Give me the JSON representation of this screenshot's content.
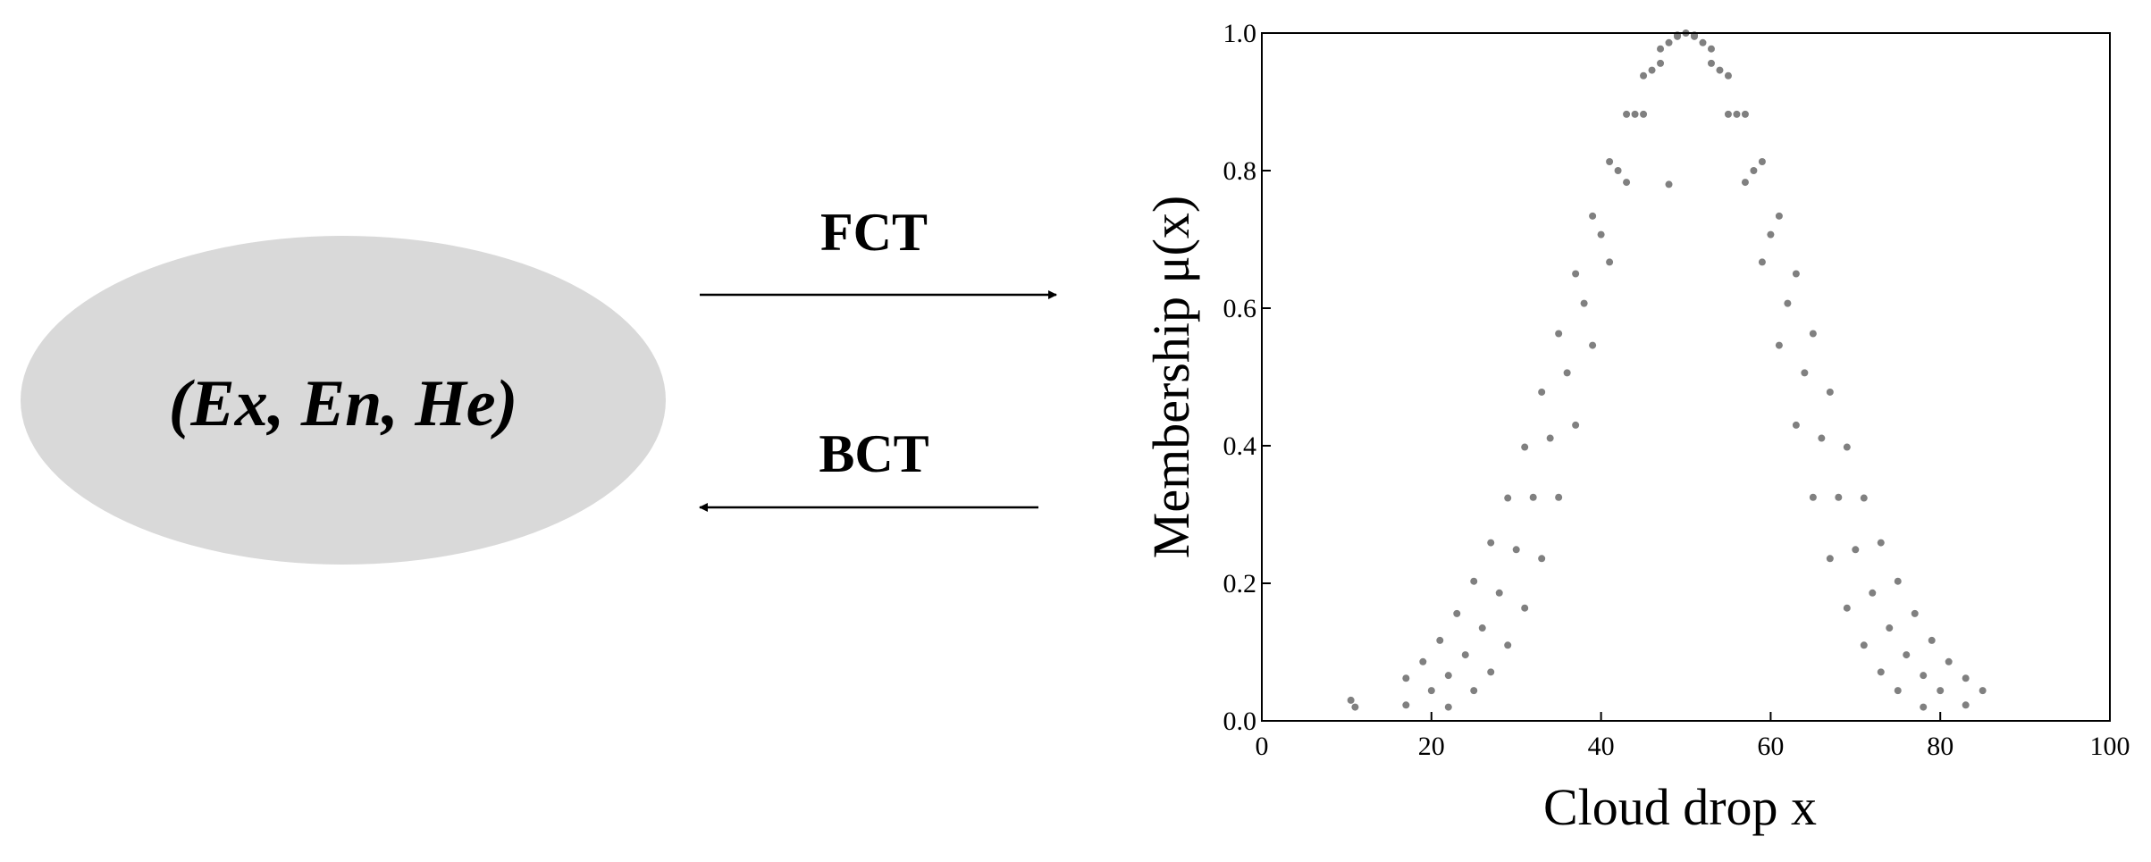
{
  "node": {
    "label": "(Ex, En, He)"
  },
  "arrows": {
    "forward": "FCT",
    "backward": "BCT"
  },
  "chart_data": {
    "type": "scatter",
    "xlabel": "Cloud drop x",
    "ylabel": "Membership μ(x)",
    "color": "#808080",
    "xlim": [
      0,
      100
    ],
    "ylim": [
      0,
      1
    ],
    "xticks": [
      0,
      20,
      40,
      60,
      80,
      100
    ],
    "yticks": [
      {
        "value": 0,
        "label": "0.0"
      },
      0.2,
      0.4,
      0.6,
      0.8,
      {
        "value": 1,
        "label": "1.0"
      }
    ],
    "x": [
      49,
      47,
      45,
      43,
      41,
      39,
      37,
      35,
      33,
      31,
      29,
      27,
      25,
      22,
      51,
      53,
      55,
      57,
      59,
      61,
      63,
      65,
      67,
      69,
      71,
      73,
      75,
      77,
      79,
      81,
      83,
      85,
      48,
      46,
      44,
      42,
      40,
      38,
      36,
      34,
      32,
      30,
      28,
      26,
      24,
      22,
      20,
      17,
      52,
      54,
      56,
      58,
      60,
      62,
      64,
      66,
      68,
      70,
      72,
      74,
      76,
      78,
      80,
      83,
      49,
      47,
      45,
      43,
      41,
      39,
      37,
      35,
      33,
      31,
      29,
      27,
      25,
      23,
      21,
      19,
      17,
      51,
      53,
      55,
      57,
      59,
      61,
      63,
      65,
      67,
      69,
      71,
      73,
      75,
      78,
      10.5,
      11,
      50,
      48
    ],
    "values": [
      0.995,
      0.956,
      0.882,
      0.783,
      0.667,
      0.546,
      0.43,
      0.325,
      0.236,
      0.164,
      0.11,
      0.071,
      0.044,
      0.02,
      0.997,
      0.977,
      0.938,
      0.882,
      0.813,
      0.734,
      0.65,
      0.563,
      0.478,
      0.398,
      0.324,
      0.259,
      0.203,
      0.156,
      0.117,
      0.086,
      0.062,
      0.044,
      0.986,
      0.946,
      0.882,
      0.8,
      0.707,
      0.607,
      0.506,
      0.411,
      0.325,
      0.249,
      0.186,
      0.135,
      0.096,
      0.066,
      0.044,
      0.023,
      0.986,
      0.946,
      0.882,
      0.8,
      0.707,
      0.607,
      0.506,
      0.411,
      0.325,
      0.249,
      0.186,
      0.135,
      0.096,
      0.066,
      0.044,
      0.023,
      0.997,
      0.977,
      0.938,
      0.882,
      0.813,
      0.734,
      0.65,
      0.563,
      0.478,
      0.398,
      0.324,
      0.259,
      0.203,
      0.156,
      0.117,
      0.086,
      0.062,
      0.995,
      0.956,
      0.882,
      0.783,
      0.667,
      0.546,
      0.43,
      0.325,
      0.236,
      0.164,
      0.11,
      0.071,
      0.044,
      0.02,
      0.03,
      0.02,
      1.0,
      0.78
    ]
  }
}
